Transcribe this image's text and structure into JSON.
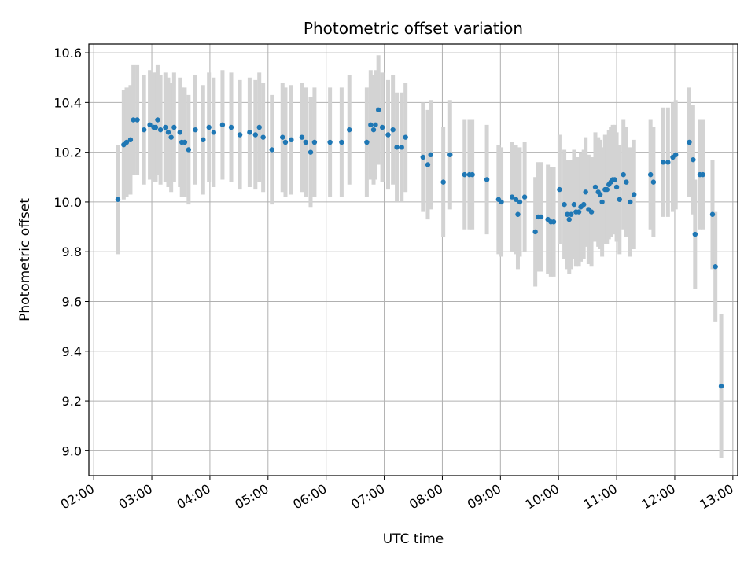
{
  "chart_data": {
    "type": "scatter",
    "title": "Photometric offset variation",
    "xlabel": "UTC time",
    "ylabel": "Photometric offset",
    "x_unit": "UTC hours",
    "xlim": [
      "01:55",
      "13:05"
    ],
    "ylim": [
      8.9,
      10.635
    ],
    "x_ticks": [
      "02:00",
      "03:00",
      "04:00",
      "05:00",
      "06:00",
      "07:00",
      "08:00",
      "09:00",
      "10:00",
      "11:00",
      "12:00",
      "13:00"
    ],
    "y_ticks": [
      "9.0",
      "9.2",
      "9.4",
      "9.6",
      "9.8",
      "10.0",
      "10.2",
      "10.4",
      "10.6"
    ],
    "grid": true,
    "point_color": "#1f77b4",
    "errorbar_color": "#d3d3d3",
    "series": [
      {
        "x": [
          "02:25",
          "02:31",
          "02:34",
          "02:38",
          "02:41",
          "02:45",
          "02:52",
          "02:58",
          "03:02",
          "03:04",
          "03:06",
          "03:09",
          "03:14",
          "03:17",
          "03:20",
          "03:23",
          "03:29",
          "03:31",
          "03:34",
          "03:38",
          "03:45",
          "03:53",
          "03:59",
          "04:04",
          "04:13",
          "04:22",
          "04:31",
          "04:41",
          "04:47",
          "04:51",
          "04:55",
          "05:04",
          "05:15",
          "05:18",
          "05:24",
          "05:35",
          "05:39",
          "05:44",
          "05:48",
          "06:04",
          "06:16",
          "06:24",
          "06:42",
          "06:46",
          "06:49",
          "06:51",
          "06:54",
          "06:58",
          "07:04",
          "07:09",
          "07:13",
          "07:18",
          "07:22",
          "07:40",
          "07:45",
          "07:48",
          "08:01",
          "08:08",
          "08:23",
          "08:28",
          "08:31",
          "08:46",
          "08:58",
          "09:01",
          "09:12",
          "09:16",
          "09:18",
          "09:20",
          "09:25",
          "09:36",
          "09:39",
          "09:42",
          "09:49",
          "09:52",
          "09:55",
          "10:01",
          "10:06",
          "10:09",
          "10:11",
          "10:13",
          "10:16",
          "10:18",
          "10:21",
          "10:23",
          "10:26",
          "10:28",
          "10:31",
          "10:34",
          "10:38",
          "10:41",
          "10:43",
          "10:45",
          "10:48",
          "10:50",
          "10:52",
          "10:54",
          "10:56",
          "10:58",
          "11:00",
          "11:03",
          "11:07",
          "11:10",
          "11:14",
          "11:18",
          "11:35",
          "11:38",
          "11:48",
          "11:53",
          "11:58",
          "12:01",
          "12:15",
          "12:19",
          "12:21",
          "12:26",
          "12:29",
          "12:39",
          "12:42",
          "12:48"
        ],
        "y": [
          10.01,
          10.23,
          10.24,
          10.25,
          10.33,
          10.33,
          10.29,
          10.31,
          10.3,
          10.3,
          10.33,
          10.29,
          10.3,
          10.28,
          10.26,
          10.3,
          10.28,
          10.24,
          10.24,
          10.21,
          10.29,
          10.25,
          10.3,
          10.28,
          10.31,
          10.3,
          10.27,
          10.28,
          10.27,
          10.3,
          10.26,
          10.21,
          10.26,
          10.24,
          10.25,
          10.26,
          10.24,
          10.2,
          10.24,
          10.24,
          10.24,
          10.29,
          10.24,
          10.31,
          10.29,
          10.31,
          10.37,
          10.3,
          10.27,
          10.29,
          10.22,
          10.22,
          10.26,
          10.18,
          10.15,
          10.19,
          10.08,
          10.19,
          10.11,
          10.11,
          10.11,
          10.09,
          10.01,
          10.0,
          10.02,
          10.01,
          9.95,
          10.0,
          10.02,
          9.88,
          9.94,
          9.94,
          9.93,
          9.92,
          9.92,
          10.05,
          9.99,
          9.95,
          9.93,
          9.95,
          9.99,
          9.96,
          9.96,
          9.98,
          9.99,
          10.04,
          9.97,
          9.96,
          10.06,
          10.04,
          10.03,
          10.0,
          10.05,
          10.05,
          10.07,
          10.08,
          10.09,
          10.09,
          10.06,
          10.01,
          10.11,
          10.08,
          10.0,
          10.03,
          10.11,
          10.08,
          10.16,
          10.16,
          10.18,
          10.19,
          10.24,
          10.17,
          9.87,
          10.11,
          10.11,
          9.95,
          9.74,
          9.26
        ],
        "err": [
          0.22,
          0.22,
          0.22,
          0.22,
          0.22,
          0.22,
          0.22,
          0.22,
          0.22,
          0.22,
          0.22,
          0.22,
          0.22,
          0.22,
          0.22,
          0.22,
          0.22,
          0.22,
          0.22,
          0.22,
          0.22,
          0.22,
          0.22,
          0.22,
          0.22,
          0.22,
          0.22,
          0.22,
          0.22,
          0.22,
          0.22,
          0.22,
          0.22,
          0.22,
          0.22,
          0.22,
          0.22,
          0.22,
          0.22,
          0.22,
          0.22,
          0.22,
          0.22,
          0.22,
          0.22,
          0.22,
          0.22,
          0.22,
          0.22,
          0.22,
          0.22,
          0.22,
          0.22,
          0.22,
          0.22,
          0.22,
          0.22,
          0.22,
          0.22,
          0.22,
          0.22,
          0.22,
          0.22,
          0.22,
          0.22,
          0.22,
          0.22,
          0.22,
          0.22,
          0.22,
          0.22,
          0.22,
          0.22,
          0.22,
          0.22,
          0.22,
          0.22,
          0.22,
          0.22,
          0.22,
          0.22,
          0.22,
          0.22,
          0.22,
          0.22,
          0.22,
          0.22,
          0.22,
          0.22,
          0.22,
          0.22,
          0.22,
          0.22,
          0.22,
          0.22,
          0.22,
          0.22,
          0.22,
          0.22,
          0.22,
          0.22,
          0.22,
          0.22,
          0.22,
          0.22,
          0.22,
          0.22,
          0.22,
          0.22,
          0.22,
          0.22,
          0.22,
          0.22,
          0.22,
          0.22,
          0.22,
          0.22,
          0.29
        ]
      }
    ]
  }
}
